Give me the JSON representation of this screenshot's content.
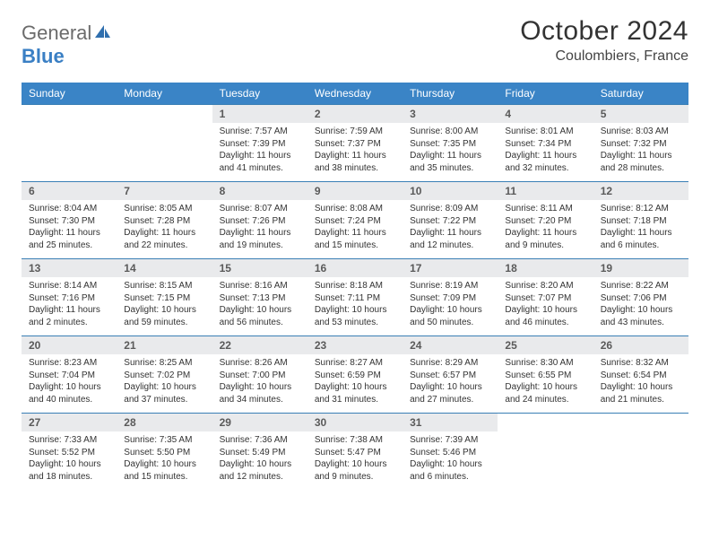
{
  "brand": {
    "part1": "General",
    "part2": "Blue"
  },
  "title": "October 2024",
  "location": "Coulombiers, France",
  "colors": {
    "header_bg": "#3a84c6",
    "daynum_bg": "#e9eaec",
    "row_border": "#3a7fb5",
    "brand_gray": "#6b6b6b",
    "brand_blue": "#3a7fc4"
  },
  "weekdays": [
    "Sunday",
    "Monday",
    "Tuesday",
    "Wednesday",
    "Thursday",
    "Friday",
    "Saturday"
  ],
  "weeks": [
    [
      null,
      null,
      {
        "n": "1",
        "sr": "Sunrise: 7:57 AM",
        "ss": "Sunset: 7:39 PM",
        "d1": "Daylight: 11 hours",
        "d2": "and 41 minutes."
      },
      {
        "n": "2",
        "sr": "Sunrise: 7:59 AM",
        "ss": "Sunset: 7:37 PM",
        "d1": "Daylight: 11 hours",
        "d2": "and 38 minutes."
      },
      {
        "n": "3",
        "sr": "Sunrise: 8:00 AM",
        "ss": "Sunset: 7:35 PM",
        "d1": "Daylight: 11 hours",
        "d2": "and 35 minutes."
      },
      {
        "n": "4",
        "sr": "Sunrise: 8:01 AM",
        "ss": "Sunset: 7:34 PM",
        "d1": "Daylight: 11 hours",
        "d2": "and 32 minutes."
      },
      {
        "n": "5",
        "sr": "Sunrise: 8:03 AM",
        "ss": "Sunset: 7:32 PM",
        "d1": "Daylight: 11 hours",
        "d2": "and 28 minutes."
      }
    ],
    [
      {
        "n": "6",
        "sr": "Sunrise: 8:04 AM",
        "ss": "Sunset: 7:30 PM",
        "d1": "Daylight: 11 hours",
        "d2": "and 25 minutes."
      },
      {
        "n": "7",
        "sr": "Sunrise: 8:05 AM",
        "ss": "Sunset: 7:28 PM",
        "d1": "Daylight: 11 hours",
        "d2": "and 22 minutes."
      },
      {
        "n": "8",
        "sr": "Sunrise: 8:07 AM",
        "ss": "Sunset: 7:26 PM",
        "d1": "Daylight: 11 hours",
        "d2": "and 19 minutes."
      },
      {
        "n": "9",
        "sr": "Sunrise: 8:08 AM",
        "ss": "Sunset: 7:24 PM",
        "d1": "Daylight: 11 hours",
        "d2": "and 15 minutes."
      },
      {
        "n": "10",
        "sr": "Sunrise: 8:09 AM",
        "ss": "Sunset: 7:22 PM",
        "d1": "Daylight: 11 hours",
        "d2": "and 12 minutes."
      },
      {
        "n": "11",
        "sr": "Sunrise: 8:11 AM",
        "ss": "Sunset: 7:20 PM",
        "d1": "Daylight: 11 hours",
        "d2": "and 9 minutes."
      },
      {
        "n": "12",
        "sr": "Sunrise: 8:12 AM",
        "ss": "Sunset: 7:18 PM",
        "d1": "Daylight: 11 hours",
        "d2": "and 6 minutes."
      }
    ],
    [
      {
        "n": "13",
        "sr": "Sunrise: 8:14 AM",
        "ss": "Sunset: 7:16 PM",
        "d1": "Daylight: 11 hours",
        "d2": "and 2 minutes."
      },
      {
        "n": "14",
        "sr": "Sunrise: 8:15 AM",
        "ss": "Sunset: 7:15 PM",
        "d1": "Daylight: 10 hours",
        "d2": "and 59 minutes."
      },
      {
        "n": "15",
        "sr": "Sunrise: 8:16 AM",
        "ss": "Sunset: 7:13 PM",
        "d1": "Daylight: 10 hours",
        "d2": "and 56 minutes."
      },
      {
        "n": "16",
        "sr": "Sunrise: 8:18 AM",
        "ss": "Sunset: 7:11 PM",
        "d1": "Daylight: 10 hours",
        "d2": "and 53 minutes."
      },
      {
        "n": "17",
        "sr": "Sunrise: 8:19 AM",
        "ss": "Sunset: 7:09 PM",
        "d1": "Daylight: 10 hours",
        "d2": "and 50 minutes."
      },
      {
        "n": "18",
        "sr": "Sunrise: 8:20 AM",
        "ss": "Sunset: 7:07 PM",
        "d1": "Daylight: 10 hours",
        "d2": "and 46 minutes."
      },
      {
        "n": "19",
        "sr": "Sunrise: 8:22 AM",
        "ss": "Sunset: 7:06 PM",
        "d1": "Daylight: 10 hours",
        "d2": "and 43 minutes."
      }
    ],
    [
      {
        "n": "20",
        "sr": "Sunrise: 8:23 AM",
        "ss": "Sunset: 7:04 PM",
        "d1": "Daylight: 10 hours",
        "d2": "and 40 minutes."
      },
      {
        "n": "21",
        "sr": "Sunrise: 8:25 AM",
        "ss": "Sunset: 7:02 PM",
        "d1": "Daylight: 10 hours",
        "d2": "and 37 minutes."
      },
      {
        "n": "22",
        "sr": "Sunrise: 8:26 AM",
        "ss": "Sunset: 7:00 PM",
        "d1": "Daylight: 10 hours",
        "d2": "and 34 minutes."
      },
      {
        "n": "23",
        "sr": "Sunrise: 8:27 AM",
        "ss": "Sunset: 6:59 PM",
        "d1": "Daylight: 10 hours",
        "d2": "and 31 minutes."
      },
      {
        "n": "24",
        "sr": "Sunrise: 8:29 AM",
        "ss": "Sunset: 6:57 PM",
        "d1": "Daylight: 10 hours",
        "d2": "and 27 minutes."
      },
      {
        "n": "25",
        "sr": "Sunrise: 8:30 AM",
        "ss": "Sunset: 6:55 PM",
        "d1": "Daylight: 10 hours",
        "d2": "and 24 minutes."
      },
      {
        "n": "26",
        "sr": "Sunrise: 8:32 AM",
        "ss": "Sunset: 6:54 PM",
        "d1": "Daylight: 10 hours",
        "d2": "and 21 minutes."
      }
    ],
    [
      {
        "n": "27",
        "sr": "Sunrise: 7:33 AM",
        "ss": "Sunset: 5:52 PM",
        "d1": "Daylight: 10 hours",
        "d2": "and 18 minutes."
      },
      {
        "n": "28",
        "sr": "Sunrise: 7:35 AM",
        "ss": "Sunset: 5:50 PM",
        "d1": "Daylight: 10 hours",
        "d2": "and 15 minutes."
      },
      {
        "n": "29",
        "sr": "Sunrise: 7:36 AM",
        "ss": "Sunset: 5:49 PM",
        "d1": "Daylight: 10 hours",
        "d2": "and 12 minutes."
      },
      {
        "n": "30",
        "sr": "Sunrise: 7:38 AM",
        "ss": "Sunset: 5:47 PM",
        "d1": "Daylight: 10 hours",
        "d2": "and 9 minutes."
      },
      {
        "n": "31",
        "sr": "Sunrise: 7:39 AM",
        "ss": "Sunset: 5:46 PM",
        "d1": "Daylight: 10 hours",
        "d2": "and 6 minutes."
      },
      null,
      null
    ]
  ]
}
